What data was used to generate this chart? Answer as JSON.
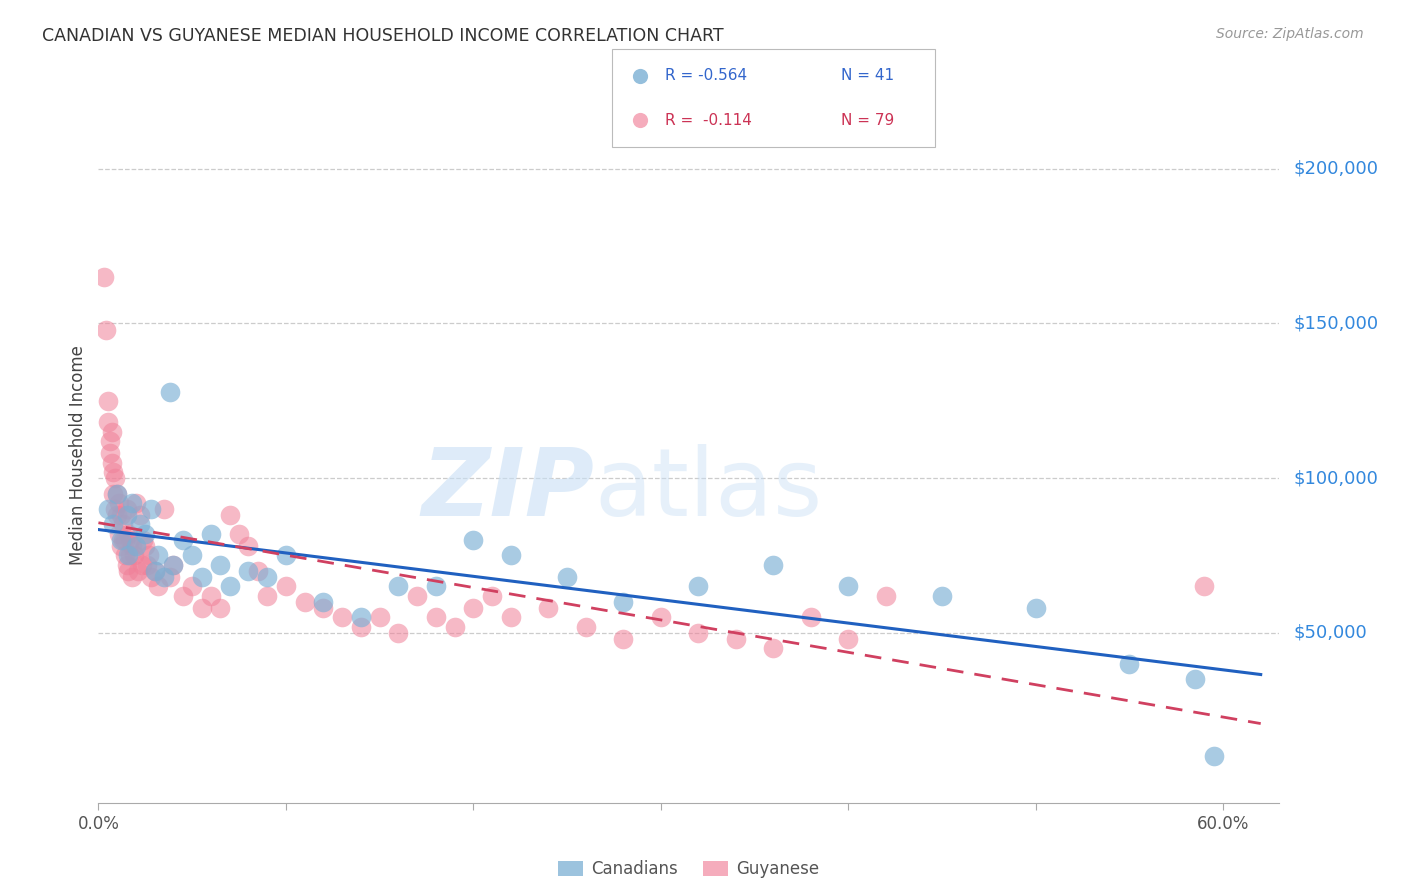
{
  "title": "CANADIAN VS GUYANESE MEDIAN HOUSEHOLD INCOME CORRELATION CHART",
  "source": "Source: ZipAtlas.com",
  "ylabel": "Median Household Income",
  "ytick_labels": [
    "$50,000",
    "$100,000",
    "$150,000",
    "$200,000"
  ],
  "ytick_values": [
    50000,
    100000,
    150000,
    200000
  ],
  "xlim": [
    0.0,
    0.63
  ],
  "ylim": [
    -5000,
    220000
  ],
  "watermark_zip": "ZIP",
  "watermark_atlas": "atlas",
  "canadians_label": "Canadians",
  "guyanese_label": "Guyanese",
  "canadian_color": "#7bafd4",
  "guyanese_color": "#f08098",
  "canadian_trend_color": "#2060c0",
  "guyanese_trend_color": "#d04060",
  "canadians_x": [
    0.005,
    0.008,
    0.01,
    0.012,
    0.015,
    0.016,
    0.018,
    0.02,
    0.022,
    0.025,
    0.028,
    0.03,
    0.032,
    0.035,
    0.038,
    0.04,
    0.045,
    0.05,
    0.055,
    0.06,
    0.065,
    0.07,
    0.08,
    0.09,
    0.1,
    0.12,
    0.14,
    0.16,
    0.18,
    0.2,
    0.22,
    0.25,
    0.28,
    0.32,
    0.36,
    0.4,
    0.45,
    0.5,
    0.55,
    0.585,
    0.595
  ],
  "canadians_y": [
    90000,
    85000,
    95000,
    80000,
    88000,
    75000,
    92000,
    78000,
    85000,
    82000,
    90000,
    70000,
    75000,
    68000,
    128000,
    72000,
    80000,
    75000,
    68000,
    82000,
    72000,
    65000,
    70000,
    68000,
    75000,
    60000,
    55000,
    65000,
    65000,
    80000,
    75000,
    68000,
    60000,
    65000,
    72000,
    65000,
    62000,
    58000,
    40000,
    35000,
    10000
  ],
  "guyanese_x": [
    0.003,
    0.004,
    0.005,
    0.005,
    0.006,
    0.006,
    0.007,
    0.007,
    0.008,
    0.008,
    0.009,
    0.009,
    0.01,
    0.01,
    0.011,
    0.011,
    0.012,
    0.012,
    0.013,
    0.013,
    0.014,
    0.014,
    0.015,
    0.015,
    0.016,
    0.016,
    0.017,
    0.017,
    0.018,
    0.018,
    0.019,
    0.02,
    0.021,
    0.022,
    0.023,
    0.024,
    0.025,
    0.026,
    0.027,
    0.028,
    0.03,
    0.032,
    0.035,
    0.038,
    0.04,
    0.045,
    0.05,
    0.055,
    0.06,
    0.065,
    0.07,
    0.075,
    0.08,
    0.085,
    0.09,
    0.1,
    0.11,
    0.12,
    0.13,
    0.14,
    0.15,
    0.16,
    0.17,
    0.18,
    0.19,
    0.2,
    0.21,
    0.22,
    0.24,
    0.26,
    0.28,
    0.3,
    0.32,
    0.34,
    0.36,
    0.38,
    0.4,
    0.42,
    0.59
  ],
  "guyanese_y": [
    165000,
    148000,
    125000,
    118000,
    112000,
    108000,
    115000,
    105000,
    102000,
    95000,
    100000,
    90000,
    95000,
    88000,
    92000,
    82000,
    88000,
    78000,
    85000,
    80000,
    80000,
    75000,
    90000,
    72000,
    82000,
    70000,
    80000,
    75000,
    78000,
    68000,
    75000,
    92000,
    70000,
    88000,
    72000,
    80000,
    78000,
    72000,
    75000,
    68000,
    70000,
    65000,
    90000,
    68000,
    72000,
    62000,
    65000,
    58000,
    62000,
    58000,
    88000,
    82000,
    78000,
    70000,
    62000,
    65000,
    60000,
    58000,
    55000,
    52000,
    55000,
    50000,
    62000,
    55000,
    52000,
    58000,
    62000,
    55000,
    58000,
    52000,
    48000,
    55000,
    50000,
    48000,
    45000,
    55000,
    48000,
    62000,
    65000
  ],
  "xtick_positions": [
    0.0,
    0.1,
    0.2,
    0.3,
    0.4,
    0.5,
    0.6
  ],
  "xtick_labels": [
    "0.0%",
    "",
    "",
    "",
    "",
    "",
    "60.0%"
  ],
  "legend_r1": "R = -0.564",
  "legend_n1": "N = 41",
  "legend_r2": "R =  -0.114",
  "legend_n2": "N = 79"
}
